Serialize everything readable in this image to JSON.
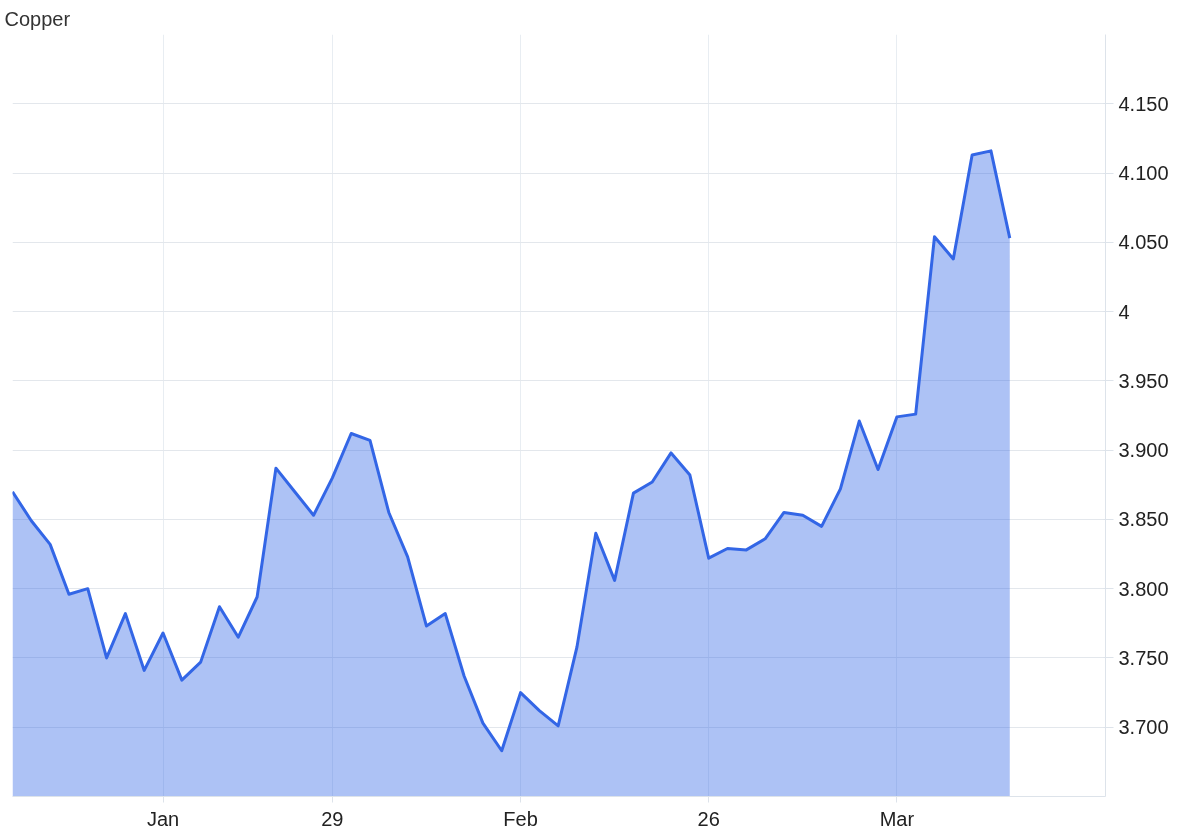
{
  "chart_data": {
    "type": "area",
    "title": "Copper",
    "categories": [
      null,
      null,
      null,
      null,
      null,
      null,
      null,
      null,
      "Jan",
      null,
      null,
      null,
      null,
      null,
      null,
      null,
      null,
      "29",
      null,
      null,
      null,
      null,
      null,
      null,
      null,
      null,
      null,
      "Feb",
      null,
      null,
      null,
      null,
      null,
      null,
      null,
      null,
      null,
      "26",
      null,
      null,
      null,
      null,
      null,
      null,
      null,
      null,
      null,
      "Mar",
      null,
      null,
      null,
      null,
      null,
      null
    ],
    "series": [
      {
        "color": "#3366e6",
        "values": [
          3.87,
          3.849,
          3.832,
          3.796,
          3.8,
          3.75,
          3.782,
          3.741,
          3.768,
          3.734,
          3.747,
          3.787,
          3.765,
          3.794,
          3.887,
          3.87,
          3.853,
          3.88,
          3.912,
          3.907,
          3.855,
          3.823,
          3.773,
          3.782,
          3.737,
          3.703,
          3.683,
          3.725,
          3.712,
          3.701,
          3.758,
          3.84,
          3.806,
          3.869,
          3.877,
          3.898,
          3.882,
          3.822,
          3.829,
          3.828,
          3.836,
          3.855,
          3.853,
          3.845,
          3.872,
          3.921,
          3.886,
          3.924,
          3.926,
          4.054,
          4.038,
          4.113,
          4.116,
          4.053
        ]
      }
    ],
    "ylim": [
      3.65,
      4.2
    ],
    "yticks": [
      {
        "value": 3.7,
        "label": "3.700"
      },
      {
        "value": 3.75,
        "label": "3.750"
      },
      {
        "value": 3.8,
        "label": "3.800"
      },
      {
        "value": 3.85,
        "label": "3.850"
      },
      {
        "value": 3.9,
        "label": "3.900"
      },
      {
        "value": 3.95,
        "label": "3.950"
      },
      4,
      {
        "value": 4.05,
        "label": "4.050"
      },
      {
        "value": 4.1,
        "label": "4.100"
      },
      {
        "value": 4.15,
        "label": "4.150"
      }
    ],
    "grid": true,
    "marker": "none",
    "line_style": "solid"
  }
}
